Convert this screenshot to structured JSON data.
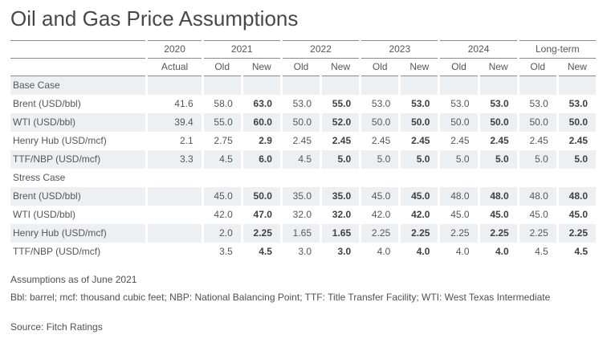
{
  "title": "Oil and Gas Price Assumptions",
  "table": {
    "column_groups": [
      {
        "label": "2020",
        "subs": [
          "Actual"
        ]
      },
      {
        "label": "2021",
        "subs": [
          "Old",
          "New"
        ]
      },
      {
        "label": "2022",
        "subs": [
          "Old",
          "New"
        ]
      },
      {
        "label": "2023",
        "subs": [
          "Old",
          "New"
        ]
      },
      {
        "label": "2024",
        "subs": [
          "Old",
          "New"
        ]
      },
      {
        "label": "Long-term",
        "subs": [
          "Old",
          "New"
        ]
      }
    ],
    "bold_value_indexes": [
      2,
      4,
      6,
      8,
      10
    ],
    "sections": [
      {
        "name": "Base Case",
        "rows": [
          {
            "label": "Brent (USD/bbl)",
            "values": [
              "41.6",
              "58.0",
              "63.0",
              "53.0",
              "55.0",
              "53.0",
              "53.0",
              "53.0",
              "53.0",
              "53.0",
              "53.0"
            ]
          },
          {
            "label": "WTI (USD/bbl)",
            "values": [
              "39.4",
              "55.0",
              "60.0",
              "50.0",
              "52.0",
              "50.0",
              "50.0",
              "50.0",
              "50.0",
              "50.0",
              "50.0"
            ]
          },
          {
            "label": "Henry Hub (USD/mcf)",
            "values": [
              "2.1",
              "2.75",
              "2.9",
              "2.45",
              "2.45",
              "2.45",
              "2.45",
              "2.45",
              "2.45",
              "2.45",
              "2.45"
            ]
          },
          {
            "label": "TTF/NBP (USD/mcf)",
            "values": [
              "3.3",
              "4.5",
              "6.0",
              "4.5",
              "5.0",
              "5.0",
              "5.0",
              "5.0",
              "5.0",
              "5.0",
              "5.0"
            ]
          }
        ]
      },
      {
        "name": "Stress Case",
        "rows": [
          {
            "label": "Brent (USD/bbl)",
            "values": [
              "",
              "45.0",
              "50.0",
              "35.0",
              "35.0",
              "45.0",
              "45.0",
              "48.0",
              "48.0",
              "48.0",
              "48.0"
            ]
          },
          {
            "label": "WTI (USD/bbl)",
            "values": [
              "",
              "42.0",
              "47.0",
              "32.0",
              "32.0",
              "42.0",
              "42.0",
              "45.0",
              "45.0",
              "45.0",
              "45.0"
            ]
          },
          {
            "label": "Henry Hub (USD/mcf)",
            "values": [
              "",
              "2.0",
              "2.25",
              "1.65",
              "1.65",
              "2.25",
              "2.25",
              "2.25",
              "2.25",
              "2.25",
              "2.25"
            ]
          },
          {
            "label": "TTF/NBP (USD/mcf)",
            "values": [
              "",
              "3.5",
              "4.5",
              "3.0",
              "3.0",
              "4.0",
              "4.0",
              "4.0",
              "4.0",
              "4.5",
              "4.5"
            ]
          }
        ]
      }
    ]
  },
  "footnotes": {
    "as_of": "Assumptions as of June 2021",
    "abbreviations": "Bbl: barrel; mcf: thousand cubic feet; NBP: National Balancing Point; TTF: Title Transfer Facility; WTI: West Texas Intermediate"
  },
  "source": "Source: Fitch Ratings",
  "colors": {
    "stripe": "#edf0f3",
    "rule": "#8b8b8b",
    "text": "#55565a",
    "bold_value_text": "#3f4042",
    "title_text": "#48484a",
    "background": "#ffffff"
  }
}
